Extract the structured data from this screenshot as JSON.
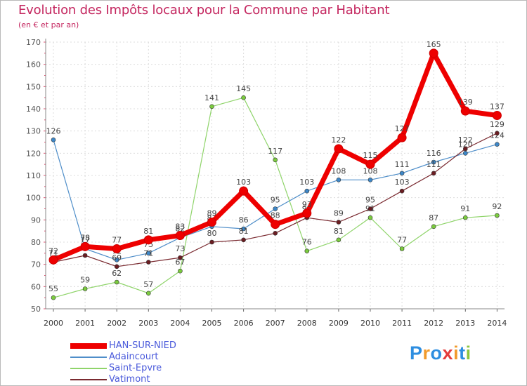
{
  "header": {
    "title": "Evolution des Impôts locaux pour la Commune par Habitant",
    "subtitle": "(en € et par an)"
  },
  "brand": {
    "text": "Proxiti",
    "letters": [
      "P",
      "r",
      "o",
      "x",
      "i",
      "t",
      "i"
    ],
    "colors": [
      "#2e8ee0",
      "#f19a2b",
      "#2e8ee0",
      "#e43c3c",
      "#f19a2b",
      "#2e8ee0",
      "#8cc63f"
    ]
  },
  "chart_data": {
    "type": "line",
    "title": "Evolution des Impôts locaux pour la Commune par Habitant",
    "ylabel": "(en € et par an)",
    "xlabel": "",
    "x": [
      "2000",
      "2001",
      "2002",
      "2003",
      "2004",
      "2005",
      "2006",
      "2007",
      "2008",
      "2009",
      "2010",
      "2011",
      "2012",
      "2013",
      "2014"
    ],
    "ylim": [
      50,
      170
    ],
    "yticks": [
      50,
      60,
      70,
      80,
      90,
      100,
      110,
      120,
      130,
      140,
      150,
      160,
      170
    ],
    "grid": true,
    "legend_position": "bottom-left",
    "series": [
      {
        "name": "Adaincourt",
        "color": "#4f8ec9",
        "width": 1.2,
        "marker": "#3d87c8",
        "values": [
          126,
          77,
          72,
          75,
          82,
          87,
          86,
          95,
          103,
          108,
          108,
          111,
          116,
          120,
          124
        ]
      },
      {
        "name": "Saint-Epvre",
        "color": "#8fd46a",
        "width": 1.2,
        "marker": "#7bcb3e",
        "values": [
          55,
          59,
          62,
          57,
          67,
          141,
          145,
          117,
          76,
          81,
          91,
          77,
          87,
          91,
          92
        ]
      },
      {
        "name": "Vatimont",
        "color": "#7a2a30",
        "width": 1.2,
        "marker": "#6b1d22",
        "values": [
          71,
          74,
          69,
          71,
          73,
          80,
          81,
          84,
          91,
          89,
          95,
          103,
          111,
          122,
          129
        ]
      },
      {
        "name": "HAN-SUR-NIED",
        "color": "#ee0000",
        "width": 7,
        "marker": "#ee0000",
        "values": [
          72,
          78,
          77,
          81,
          83,
          89,
          103,
          88,
          93,
          122,
          115,
          127,
          165,
          139,
          137
        ]
      }
    ]
  }
}
